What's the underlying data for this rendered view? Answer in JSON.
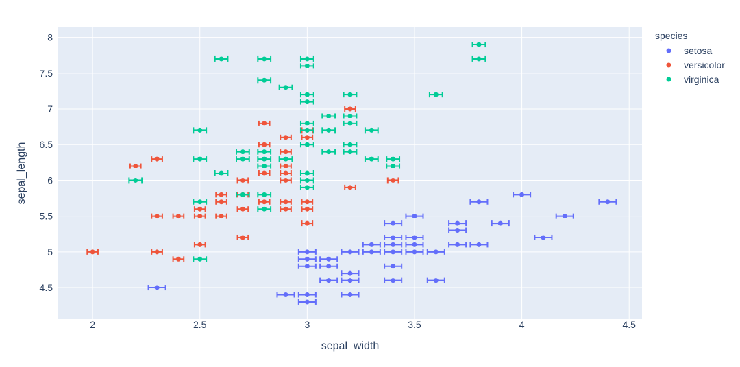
{
  "chart_data": {
    "type": "scatter",
    "title": "",
    "xlabel": "sepal_width",
    "ylabel": "sepal_length",
    "xlim": [
      1.84,
      4.56
    ],
    "ylim": [
      4.06,
      8.14
    ],
    "x_ticks": [
      2,
      2.5,
      3,
      3.5,
      4,
      4.5
    ],
    "x_tick_labels": [
      "2",
      "2.5",
      "3",
      "3.5",
      "4",
      "4.5"
    ],
    "y_ticks": [
      4.5,
      5,
      5.5,
      6,
      6.5,
      7,
      7.5,
      8
    ],
    "y_tick_labels": [
      "4.5",
      "5",
      "5.5",
      "6",
      "6.5",
      "7",
      "7.5",
      "8"
    ],
    "grid": true,
    "error_x": "horizontal error bars",
    "legend": {
      "title": "species",
      "position": "top-right"
    },
    "series": [
      {
        "name": "setosa",
        "color": "#636efa",
        "error": [
          0.04,
          0.04
        ],
        "points": [
          [
            2.3,
            4.5
          ],
          [
            2.9,
            4.4
          ],
          [
            3.0,
            4.4
          ],
          [
            3.0,
            4.3
          ],
          [
            3.2,
            4.4
          ],
          [
            3.0,
            5.0
          ],
          [
            3.0,
            4.9
          ],
          [
            3.0,
            4.8
          ],
          [
            3.1,
            4.9
          ],
          [
            3.1,
            4.8
          ],
          [
            3.1,
            4.6
          ],
          [
            3.2,
            4.7
          ],
          [
            3.2,
            4.6
          ],
          [
            3.2,
            5.0
          ],
          [
            3.3,
            5.1
          ],
          [
            3.3,
            5.0
          ],
          [
            3.4,
            5.4
          ],
          [
            3.4,
            5.2
          ],
          [
            3.4,
            5.1
          ],
          [
            3.4,
            5.0
          ],
          [
            3.4,
            4.8
          ],
          [
            3.4,
            4.6
          ],
          [
            3.5,
            5.5
          ],
          [
            3.5,
            5.2
          ],
          [
            3.5,
            5.1
          ],
          [
            3.5,
            5.0
          ],
          [
            3.6,
            5.0
          ],
          [
            3.6,
            4.6
          ],
          [
            3.7,
            5.4
          ],
          [
            3.7,
            5.3
          ],
          [
            3.7,
            5.1
          ],
          [
            3.8,
            5.7
          ],
          [
            3.8,
            5.1
          ],
          [
            3.9,
            5.4
          ],
          [
            4.0,
            5.8
          ],
          [
            4.1,
            5.2
          ],
          [
            4.2,
            5.5
          ],
          [
            4.4,
            5.7
          ]
        ]
      },
      {
        "name": "versicolor",
        "color": "#ef553b",
        "error": [
          0.025,
          0.025
        ],
        "points": [
          [
            2.0,
            5.0
          ],
          [
            2.2,
            6.2
          ],
          [
            2.3,
            6.3
          ],
          [
            2.3,
            5.5
          ],
          [
            2.3,
            5.0
          ],
          [
            2.4,
            5.5
          ],
          [
            2.4,
            4.9
          ],
          [
            2.5,
            5.6
          ],
          [
            2.5,
            5.5
          ],
          [
            2.5,
            5.1
          ],
          [
            2.6,
            5.8
          ],
          [
            2.6,
            5.7
          ],
          [
            2.6,
            5.5
          ],
          [
            2.7,
            6.0
          ],
          [
            2.7,
            5.8
          ],
          [
            2.7,
            5.6
          ],
          [
            2.7,
            5.2
          ],
          [
            2.8,
            6.8
          ],
          [
            2.8,
            6.5
          ],
          [
            2.8,
            6.1
          ],
          [
            2.8,
            5.7
          ],
          [
            2.9,
            6.6
          ],
          [
            2.9,
            6.4
          ],
          [
            2.9,
            6.2
          ],
          [
            2.9,
            6.1
          ],
          [
            2.9,
            6.0
          ],
          [
            2.9,
            5.7
          ],
          [
            2.9,
            5.6
          ],
          [
            3.0,
            6.7
          ],
          [
            3.0,
            6.6
          ],
          [
            3.0,
            5.7
          ],
          [
            3.0,
            5.6
          ],
          [
            3.0,
            5.4
          ],
          [
            3.2,
            7.0
          ],
          [
            3.2,
            5.9
          ],
          [
            3.4,
            6.0
          ]
        ]
      },
      {
        "name": "virginica",
        "color": "#00cc96",
        "error": [
          0.03,
          0.03
        ],
        "points": [
          [
            2.2,
            6.0
          ],
          [
            2.5,
            6.7
          ],
          [
            2.5,
            6.3
          ],
          [
            2.5,
            5.7
          ],
          [
            2.5,
            4.9
          ],
          [
            2.6,
            7.7
          ],
          [
            2.6,
            6.1
          ],
          [
            2.7,
            6.4
          ],
          [
            2.7,
            6.3
          ],
          [
            2.7,
            5.8
          ],
          [
            2.8,
            7.7
          ],
          [
            2.8,
            7.4
          ],
          [
            2.8,
            6.4
          ],
          [
            2.8,
            6.3
          ],
          [
            2.8,
            6.2
          ],
          [
            2.8,
            5.8
          ],
          [
            2.8,
            5.6
          ],
          [
            2.9,
            7.3
          ],
          [
            2.9,
            6.3
          ],
          [
            3.0,
            7.7
          ],
          [
            3.0,
            7.6
          ],
          [
            3.0,
            7.2
          ],
          [
            3.0,
            7.1
          ],
          [
            3.0,
            6.8
          ],
          [
            3.0,
            6.7
          ],
          [
            3.0,
            6.5
          ],
          [
            3.0,
            6.1
          ],
          [
            3.0,
            6.0
          ],
          [
            3.0,
            5.9
          ],
          [
            3.1,
            6.9
          ],
          [
            3.1,
            6.7
          ],
          [
            3.1,
            6.4
          ],
          [
            3.2,
            7.2
          ],
          [
            3.2,
            6.9
          ],
          [
            3.2,
            6.8
          ],
          [
            3.2,
            6.5
          ],
          [
            3.2,
            6.4
          ],
          [
            3.3,
            6.7
          ],
          [
            3.3,
            6.3
          ],
          [
            3.4,
            6.3
          ],
          [
            3.4,
            6.2
          ],
          [
            3.6,
            7.2
          ],
          [
            3.8,
            7.9
          ],
          [
            3.8,
            7.7
          ]
        ]
      }
    ]
  }
}
